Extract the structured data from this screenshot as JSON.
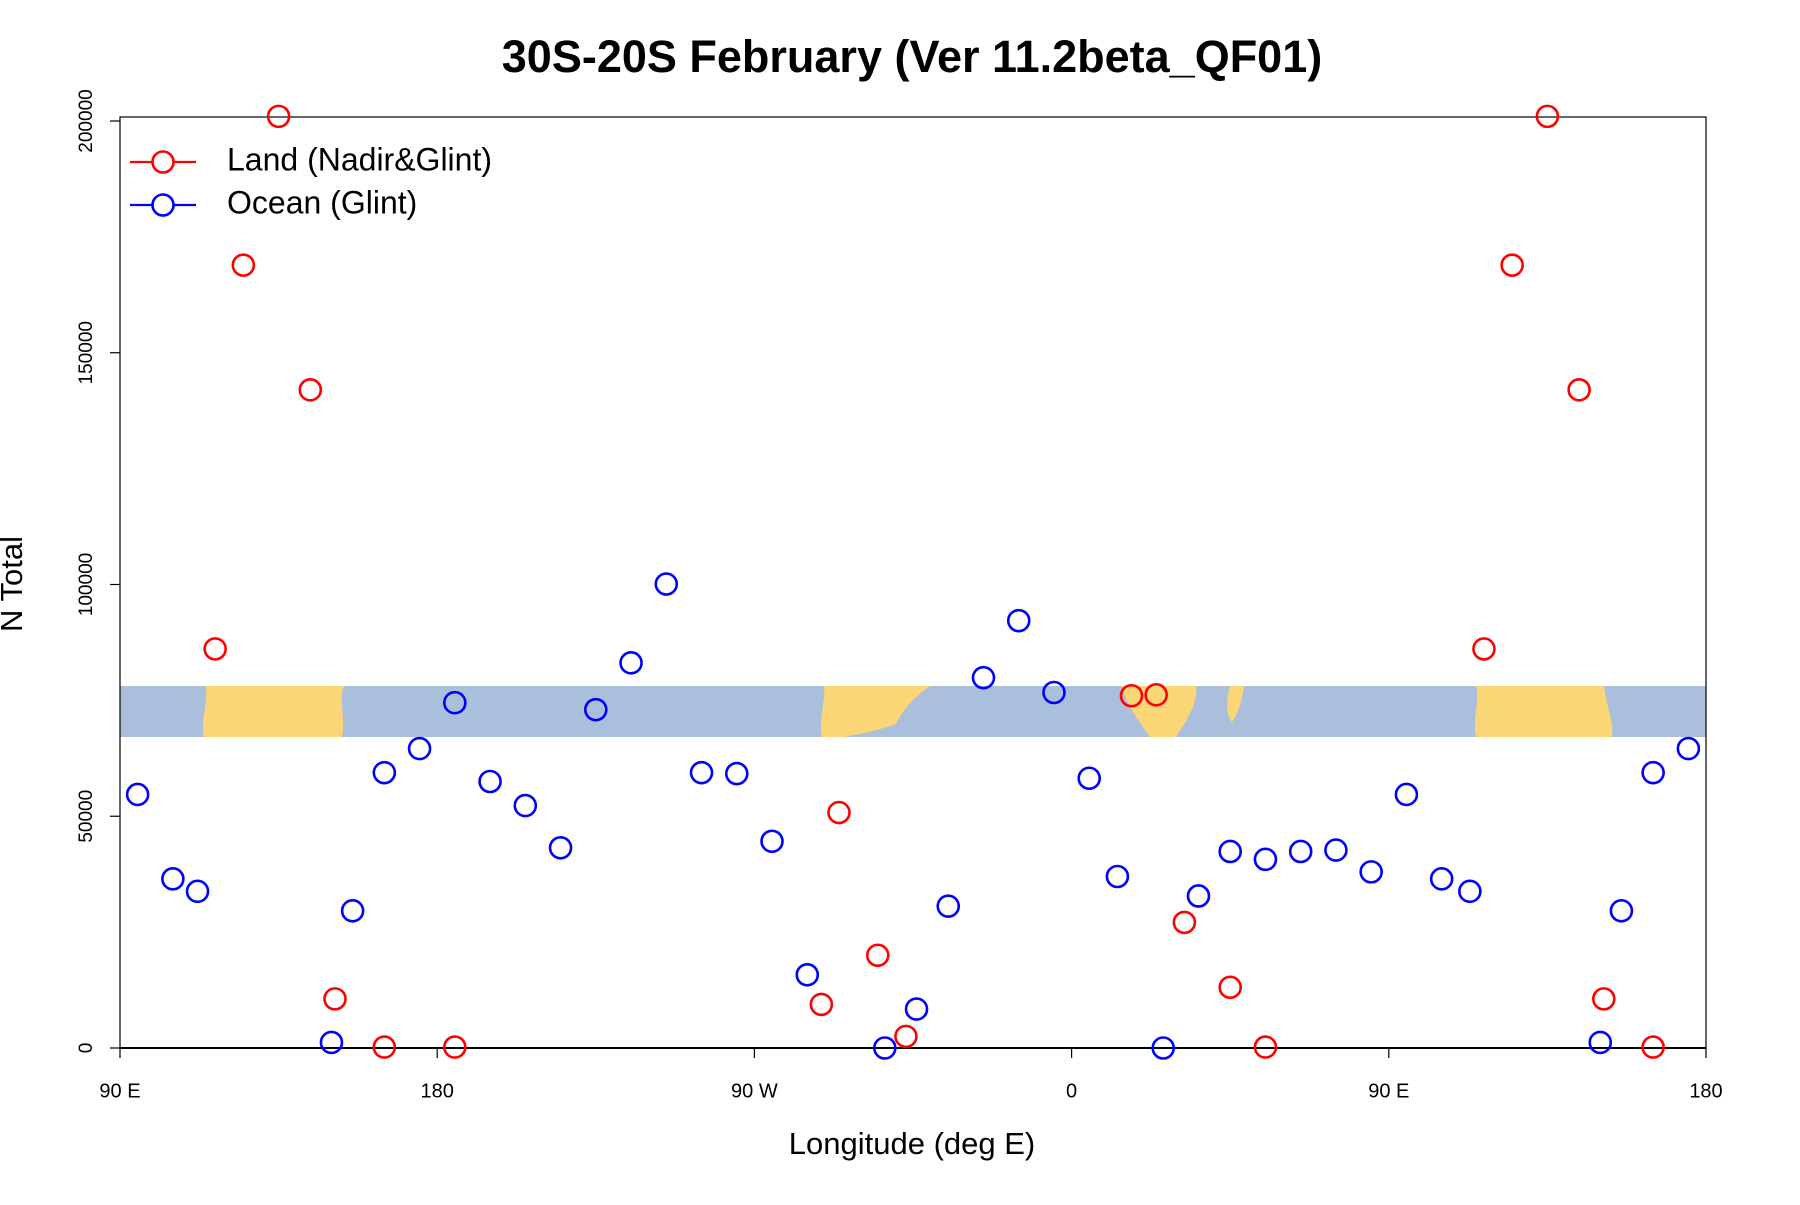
{
  "chart_data": {
    "type": "scatter",
    "title": "30S-20S February (Ver 11.2beta_QF01)",
    "x_label": "Longitude (deg E)",
    "y_label": "N Total",
    "xlim": [
      90,
      540
    ],
    "xticks": [
      {
        "value": 90,
        "label": "90 E"
      },
      180,
      {
        "value": 270,
        "label": "90 W"
      },
      {
        "value": 360,
        "label": "0"
      },
      {
        "value": 450,
        "label": "90 E"
      },
      {
        "value": 540,
        "label": "180"
      }
    ],
    "ylim": [
      0,
      200000
    ],
    "yticks": [
      0,
      50000,
      100000,
      150000,
      200000
    ],
    "grid": false,
    "legend": "top-left",
    "series": [
      {
        "name": "Land (Nadir&Glint)",
        "color": "#ff0000",
        "x": [
          117,
          125,
          135,
          144,
          151,
          165,
          185,
          289,
          294,
          305,
          313,
          377,
          384,
          392,
          405,
          415,
          477,
          485,
          495,
          504,
          511,
          525
        ],
        "values": [
          86100,
          168900,
          201000,
          142000,
          10600,
          200,
          200,
          9400,
          50800,
          20000,
          2500,
          76000,
          76200,
          27100,
          13100,
          200,
          86100,
          168900,
          201000,
          142000,
          10600,
          200
        ]
      },
      {
        "name": "Ocean (Glint)",
        "color": "#0000ff",
        "x": [
          95,
          105,
          112,
          150,
          156,
          165,
          175,
          185,
          195,
          205,
          215,
          225,
          235,
          245,
          255,
          265,
          275,
          285,
          307,
          316,
          325,
          335,
          345,
          355,
          365,
          373,
          386,
          396,
          405,
          415,
          425,
          435,
          445,
          455,
          465,
          473,
          510,
          516,
          525,
          535
        ],
        "values": [
          54700,
          36500,
          33800,
          1200,
          29600,
          59400,
          64600,
          74500,
          57500,
          52300,
          43200,
          73000,
          83100,
          100100,
          59400,
          59200,
          44600,
          15800,
          0,
          8400,
          30600,
          79900,
          92200,
          76700,
          58200,
          37000,
          0,
          32800,
          42400,
          40700,
          42400,
          42700,
          38000,
          54700,
          36500,
          33800,
          1200,
          29600,
          59400,
          64600
        ]
      }
    ]
  }
}
